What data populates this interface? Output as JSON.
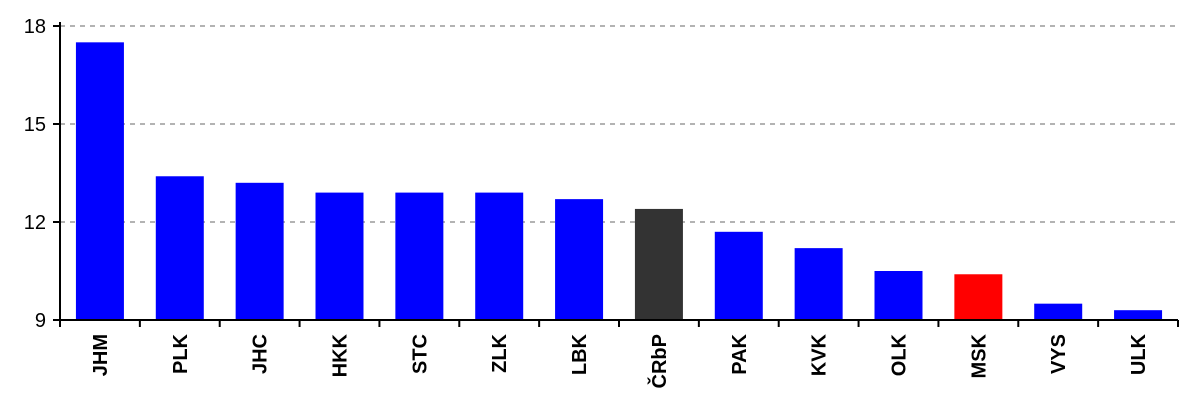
{
  "chart_data": {
    "type": "bar",
    "title": "",
    "xlabel": "",
    "ylabel": "",
    "ylim": [
      9,
      18
    ],
    "yticks": [
      9,
      12,
      15,
      18
    ],
    "grid": true,
    "categories": [
      "JHM",
      "PLK",
      "JHC",
      "HKK",
      "STC",
      "ZLK",
      "LBK",
      "ČRbP",
      "PAK",
      "KVK",
      "OLK",
      "MSK",
      "VYS",
      "ULK"
    ],
    "values": [
      17.5,
      13.4,
      13.2,
      12.9,
      12.9,
      12.9,
      12.7,
      12.4,
      11.7,
      11.2,
      10.5,
      10.4,
      9.5,
      9.3
    ],
    "colors": [
      "#0000ff",
      "#0000ff",
      "#0000ff",
      "#0000ff",
      "#0000ff",
      "#0000ff",
      "#0000ff",
      "#333333",
      "#0000ff",
      "#0000ff",
      "#0000ff",
      "#ff0000",
      "#0000ff",
      "#0000ff"
    ]
  }
}
